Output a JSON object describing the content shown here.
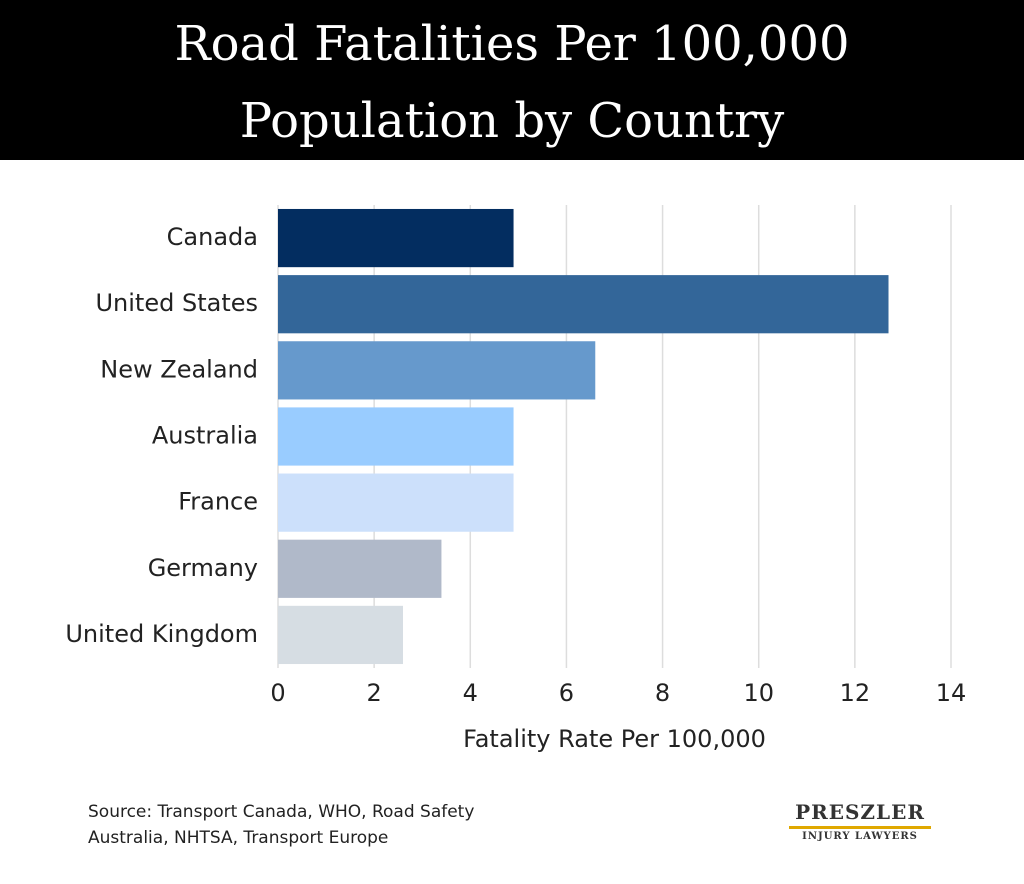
{
  "chart_data": {
    "type": "bar",
    "orientation": "horizontal",
    "title": "Road Fatalities Per 100,000 Population by Country",
    "categories": [
      "Canada",
      "United States",
      "New Zealand",
      "Australia",
      "France",
      "Germany",
      "United Kingdom"
    ],
    "values": [
      4.9,
      12.7,
      6.6,
      4.9,
      4.9,
      3.4,
      2.6
    ],
    "colors": [
      "#032d60",
      "#336699",
      "#6699cc",
      "#99ccff",
      "#cce0fb",
      "#b0b9c9",
      "#d6dde3"
    ],
    "xlabel": "Fatality Rate Per 100,000",
    "xlim": [
      0,
      14
    ],
    "xticks": [
      0,
      2,
      4,
      6,
      8,
      10,
      12,
      14
    ],
    "grid": true
  },
  "source": "Source: Transport Canada, WHO, Road Safety Australia, NHTSA, Transport Europe",
  "logo": {
    "name": "PRESZLER",
    "tagline": "INJURY LAWYERS"
  }
}
